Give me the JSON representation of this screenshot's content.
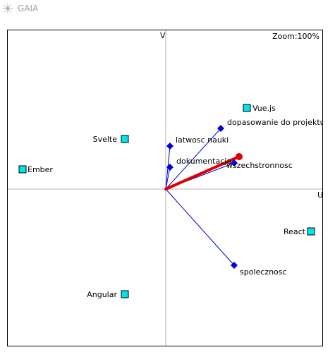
{
  "window": {
    "title": "GAIA",
    "icon": "gaia-compass-icon"
  },
  "plot": {
    "zoom_label": "Zoom:",
    "zoom_value": "100%",
    "u_axis_label": "U",
    "v_axis_label": "V",
    "colors": {
      "alternative_fill": "#00e5e5",
      "criterion_fill": "#0000e0",
      "criterion_line": "#0000cc",
      "decision_axis": "#e00000",
      "axis_line": "#b4b4b4"
    }
  },
  "chart_data": {
    "type": "scatter",
    "title": "",
    "xlabel": "U",
    "ylabel": "V",
    "alternatives": [
      {
        "name": "Vue.js",
        "u": 115,
        "v": 115
      },
      {
        "name": "Svelte",
        "u": -58,
        "v": 71
      },
      {
        "name": "Ember",
        "u": -203,
        "v": 28
      },
      {
        "name": "React",
        "u": 206,
        "v": -60
      },
      {
        "name": "Angular",
        "u": -58,
        "v": -149
      }
    ],
    "criteria": [
      {
        "name": "dopasowanie do projektu",
        "u": 78,
        "v": 86
      },
      {
        "name": "latwosc nauki",
        "u": 6,
        "v": 61
      },
      {
        "name": "dokumentacja",
        "u": 6,
        "v": 31
      },
      {
        "name": "wszechstronnosc",
        "u": 97,
        "v": 37
      },
      {
        "name": "spolecznosc",
        "u": 97,
        "v": -108
      }
    ],
    "decision_axis": {
      "u": 104,
      "v": 46
    }
  }
}
